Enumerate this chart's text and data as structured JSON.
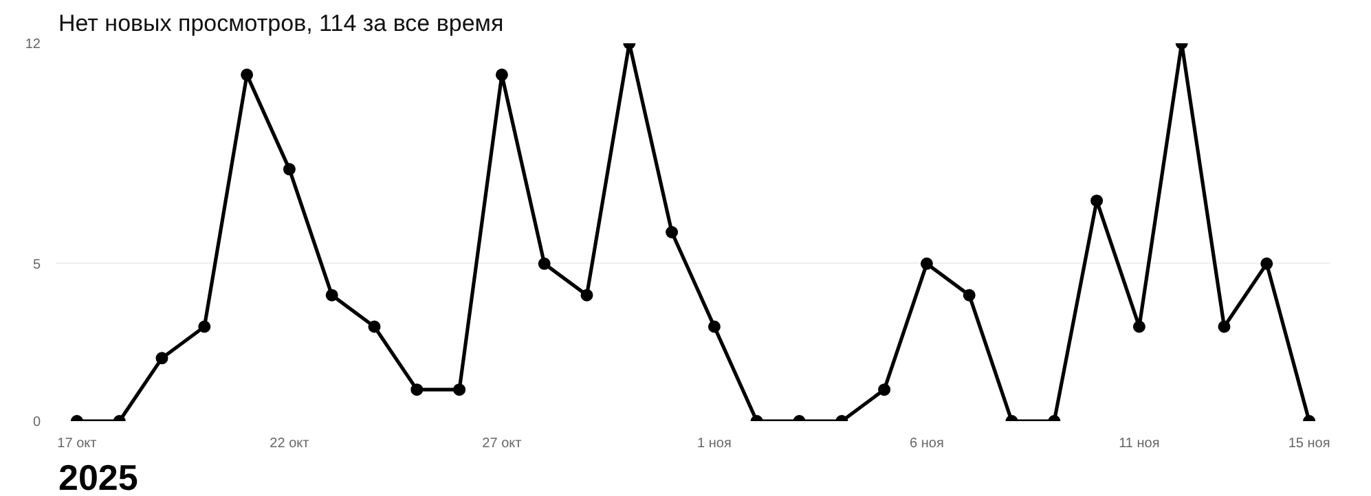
{
  "chart_data": {
    "type": "line",
    "title": "Нет новых просмотров, 114 за все время",
    "x": [
      "2025-10-17",
      "2025-10-18",
      "2025-10-19",
      "2025-10-20",
      "2025-10-21",
      "2025-10-22",
      "2025-10-23",
      "2025-10-24",
      "2025-10-25",
      "2025-10-26",
      "2025-10-27",
      "2025-10-28",
      "2025-10-29",
      "2025-10-30",
      "2025-10-31",
      "2025-11-01",
      "2025-11-02",
      "2025-11-03",
      "2025-11-04",
      "2025-11-05",
      "2025-11-06",
      "2025-11-07",
      "2025-11-08",
      "2025-11-09",
      "2025-11-10",
      "2025-11-11",
      "2025-11-12",
      "2025-11-13",
      "2025-11-14",
      "2025-11-15"
    ],
    "series": [
      {
        "color": "#000000",
        "values": [
          0,
          0,
          2,
          3,
          11,
          8,
          4,
          3,
          1,
          1,
          11,
          5,
          4,
          12,
          6,
          3,
          0,
          0,
          0,
          1,
          5,
          4,
          0,
          0,
          7,
          3,
          12,
          3,
          5,
          0
        ]
      }
    ],
    "xlim": [
      "2025-10-16T12:00",
      "2025-11-15T12:00"
    ],
    "xticks": [
      {
        "value": "2025-10-17",
        "label": "17 окт"
      },
      {
        "value": "2025-10-22",
        "label": "22 окт"
      },
      {
        "value": "2025-10-27",
        "label": "27 окт"
      },
      {
        "value": "2025-11-01",
        "label": "1 ноя"
      },
      {
        "value": "2025-11-06",
        "label": "6 ноя"
      },
      {
        "value": "2025-11-11",
        "label": "11 ноя"
      },
      {
        "value": "2025-11-15",
        "label": "15 ноя"
      }
    ],
    "ylim": [
      0,
      12
    ],
    "yticks": [
      0,
      5,
      12
    ],
    "grid": "y",
    "marker": "circle",
    "line_style": "solid",
    "annotations": [
      "2025"
    ]
  }
}
